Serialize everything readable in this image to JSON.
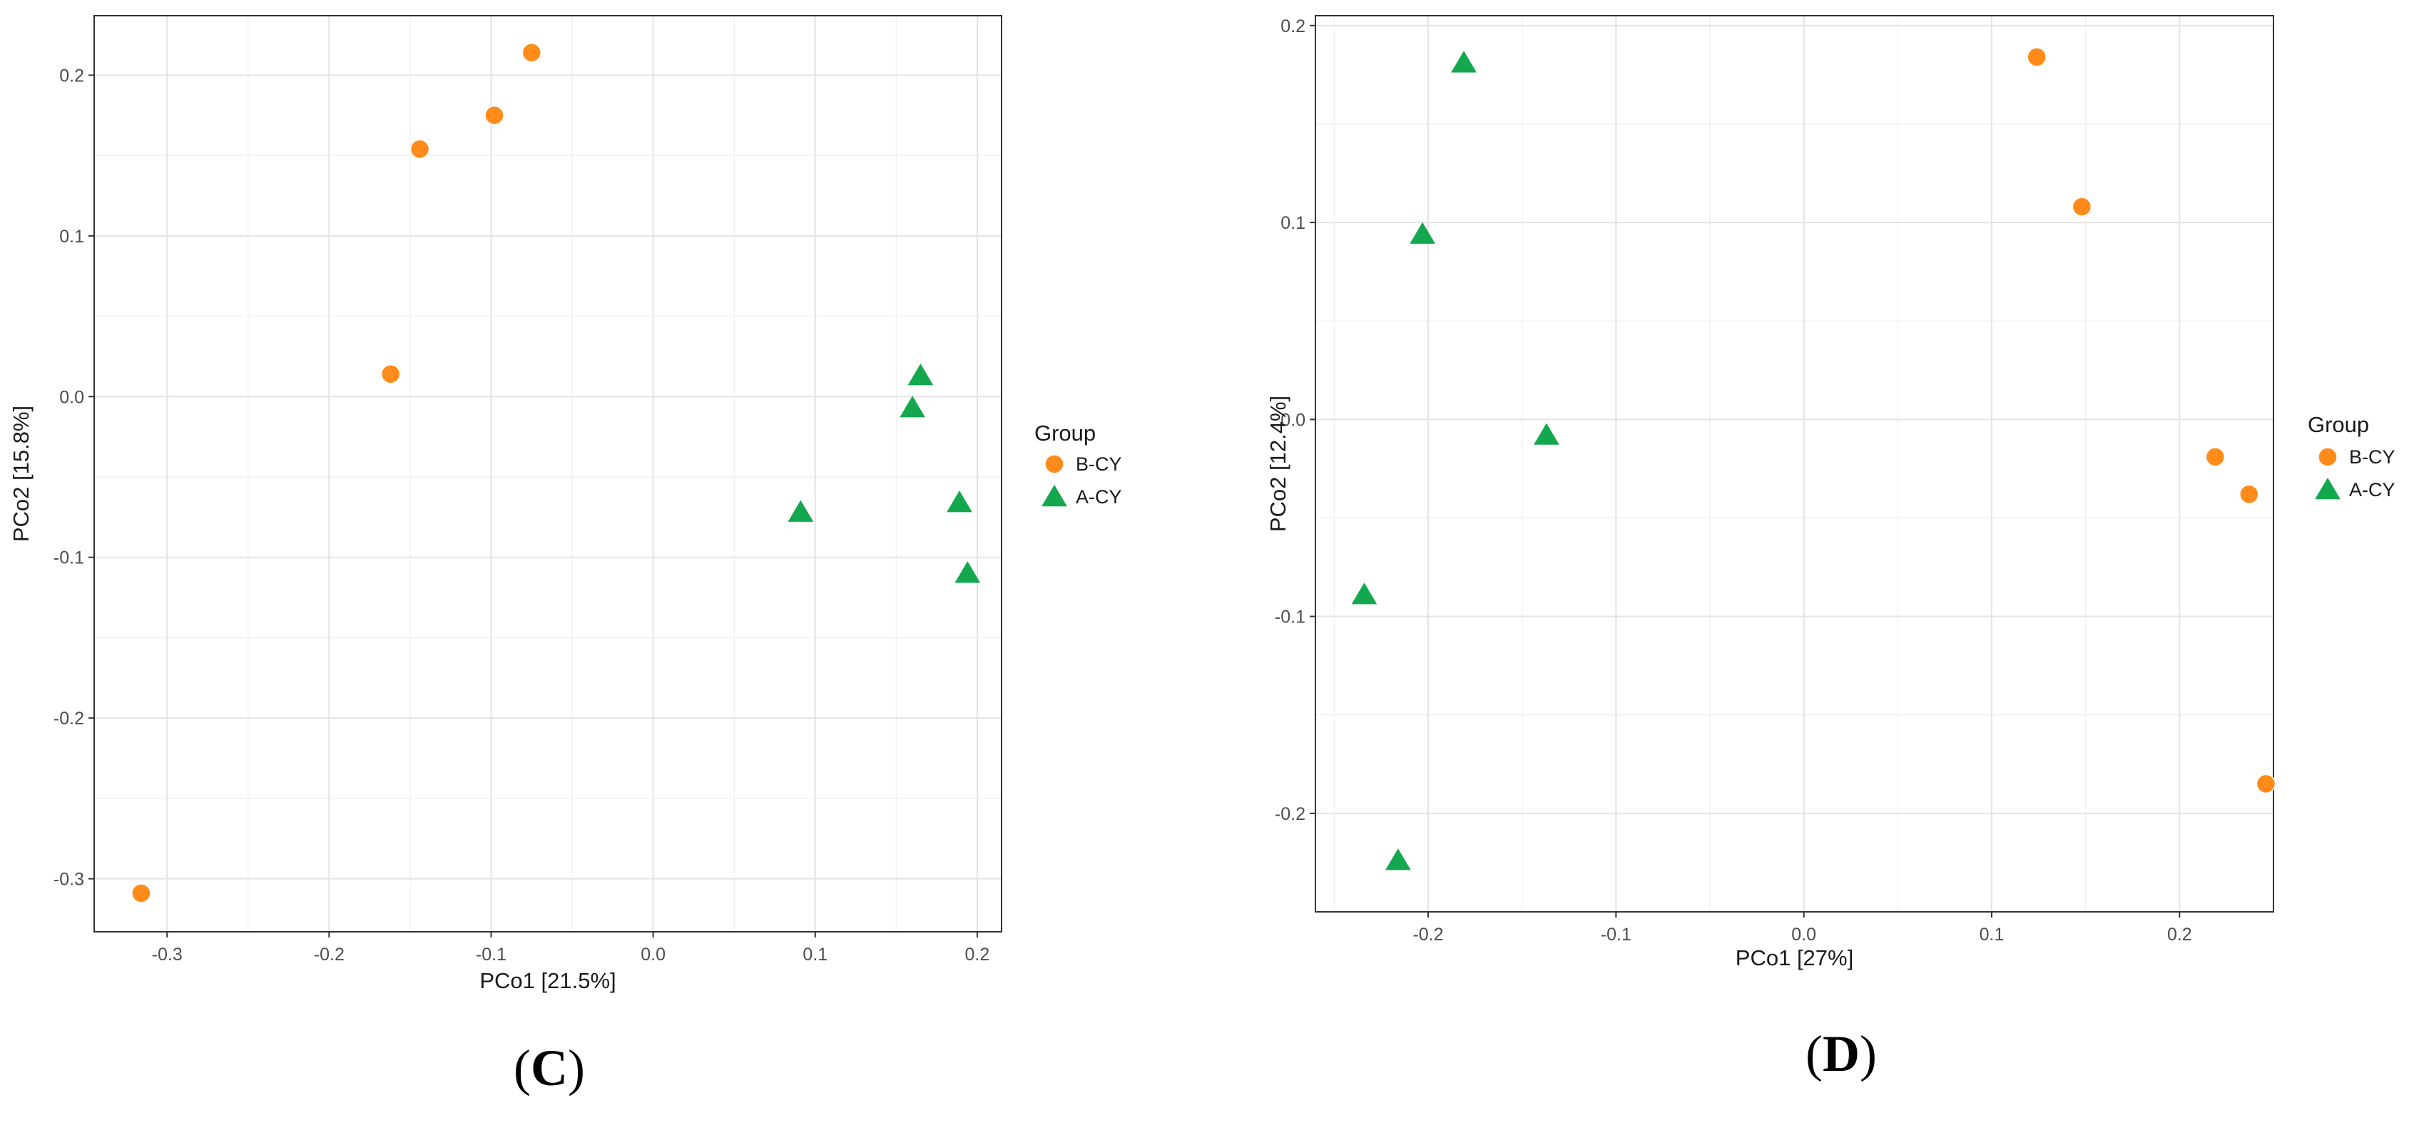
{
  "colors": {
    "B-CY": "#ff8c1a",
    "A-CY": "#13a84e",
    "grid_major": "#e3e3e3",
    "grid_minor": "#f1f1f1",
    "panel_border": "#333333"
  },
  "chart_data": [
    {
      "type": "scatter",
      "panel_label_open": "(",
      "panel_label_letter": "C",
      "panel_label_close": ")",
      "xlabel": "PCo1 [21.5%]",
      "ylabel": "PCo2 [15.8%]",
      "xlim": [
        -0.345,
        0.215
      ],
      "ylim": [
        -0.333,
        0.237
      ],
      "xticks": [
        -0.3,
        -0.2,
        -0.1,
        0.0,
        0.1,
        0.2
      ],
      "xtick_labels": [
        "-0.3",
        "-0.2",
        "-0.1",
        "0.0",
        "0.1",
        "0.2"
      ],
      "yticks": [
        -0.3,
        -0.2,
        -0.1,
        0.0,
        0.1,
        0.2
      ],
      "ytick_labels": [
        "-0.3",
        "-0.2",
        "-0.1",
        "0.0",
        "0.1",
        "0.2"
      ],
      "grid": true,
      "legend": {
        "title": "Group",
        "placement": "right",
        "entries": [
          "B-CY",
          "A-CY"
        ]
      },
      "series": [
        {
          "name": "B-CY",
          "marker": "circle",
          "points": [
            {
              "x": -0.075,
              "y": 0.214
            },
            {
              "x": -0.098,
              "y": 0.175
            },
            {
              "x": -0.144,
              "y": 0.154
            },
            {
              "x": -0.162,
              "y": 0.014
            },
            {
              "x": -0.316,
              "y": -0.309
            }
          ]
        },
        {
          "name": "A-CY",
          "marker": "triangle",
          "points": [
            {
              "x": 0.165,
              "y": 0.013
            },
            {
              "x": 0.16,
              "y": -0.007
            },
            {
              "x": 0.189,
              "y": -0.066
            },
            {
              "x": 0.091,
              "y": -0.072
            },
            {
              "x": 0.194,
              "y": -0.11
            }
          ]
        }
      ]
    },
    {
      "type": "scatter",
      "panel_label_open": "(",
      "panel_label_letter": "D",
      "panel_label_close": ")",
      "xlabel": "PCo1 [27%]",
      "ylabel": "PCo2 [12.4%]",
      "xlim": [
        -0.26,
        0.25
      ],
      "ylim": [
        -0.25,
        0.205
      ],
      "xticks": [
        -0.2,
        -0.1,
        0.0,
        0.1,
        0.2
      ],
      "xtick_labels": [
        "-0.2",
        "-0.1",
        "0.0",
        "0.1",
        "0.2"
      ],
      "yticks": [
        -0.2,
        -0.1,
        0.0,
        0.1,
        0.2
      ],
      "ytick_labels": [
        "-0.2",
        "-0.1",
        "0.0",
        "0.1",
        "0.2"
      ],
      "grid": true,
      "legend": {
        "title": "Group",
        "placement": "right",
        "entries": [
          "B-CY",
          "A-CY"
        ]
      },
      "series": [
        {
          "name": "B-CY",
          "marker": "circle",
          "points": [
            {
              "x": 0.124,
              "y": 0.184
            },
            {
              "x": 0.148,
              "y": 0.108
            },
            {
              "x": 0.219,
              "y": -0.019
            },
            {
              "x": 0.237,
              "y": -0.038
            },
            {
              "x": 0.246,
              "y": -0.185
            }
          ]
        },
        {
          "name": "A-CY",
          "marker": "triangle",
          "points": [
            {
              "x": -0.181,
              "y": 0.181
            },
            {
              "x": -0.203,
              "y": 0.094
            },
            {
              "x": -0.137,
              "y": -0.008
            },
            {
              "x": -0.234,
              "y": -0.089
            },
            {
              "x": -0.216,
              "y": -0.224
            }
          ]
        }
      ]
    }
  ]
}
